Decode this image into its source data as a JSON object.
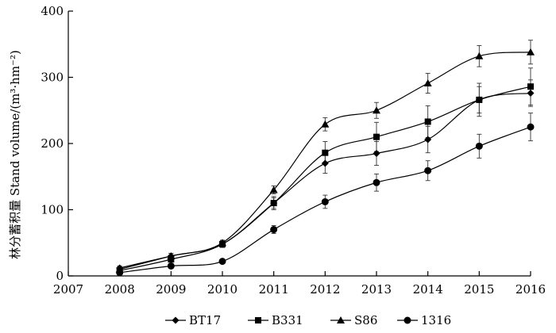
{
  "chart_data": {
    "type": "line",
    "ylabel": "林分蓄积量 Stand volume/(m³·hm⁻²)",
    "xlabel": "",
    "title": "",
    "x_ticks": [
      "2007",
      "2008",
      "2009",
      "2010",
      "2011",
      "2012",
      "2013",
      "2014",
      "2015",
      "2016"
    ],
    "y_ticks": [
      "0",
      "100",
      "200",
      "300",
      "400"
    ],
    "xlim": [
      2007,
      2016
    ],
    "ylim": [
      0,
      400
    ],
    "grid": false,
    "legend_position": "bottom",
    "x": [
      2008,
      2009,
      2010,
      2011,
      2012,
      2013,
      2014,
      2015,
      2016
    ],
    "series": [
      {
        "name": "BT17",
        "marker": "diamond",
        "values": [
          12,
          30,
          48,
          110,
          170,
          185,
          206,
          266,
          276
        ],
        "errors": [
          3,
          4,
          5,
          8,
          15,
          18,
          20,
          20,
          20
        ]
      },
      {
        "name": "B331",
        "marker": "square",
        "values": [
          8,
          25,
          48,
          110,
          186,
          210,
          233,
          266,
          286
        ],
        "errors": [
          3,
          4,
          5,
          10,
          17,
          22,
          24,
          25,
          28
        ]
      },
      {
        "name": "S86",
        "marker": "triangle",
        "values": [
          10,
          30,
          50,
          130,
          229,
          250,
          291,
          332,
          338
        ],
        "errors": [
          3,
          4,
          4,
          6,
          10,
          12,
          15,
          16,
          18
        ]
      },
      {
        "name": "1316",
        "marker": "circle",
        "values": [
          5,
          15,
          22,
          70,
          112,
          141,
          159,
          196,
          225
        ],
        "errors": [
          2,
          3,
          3,
          6,
          10,
          13,
          15,
          18,
          21
        ]
      }
    ]
  }
}
